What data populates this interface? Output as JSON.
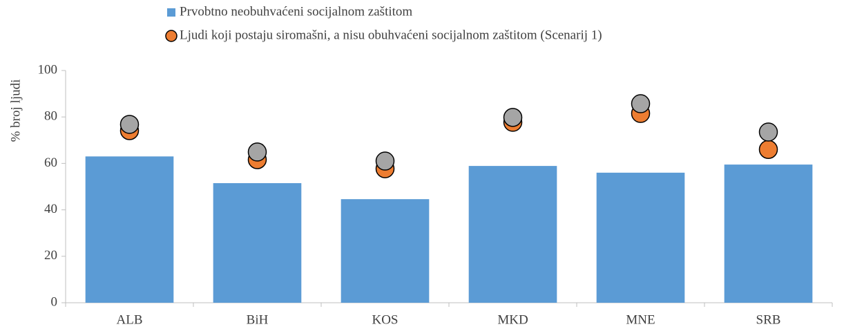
{
  "chart_data": {
    "type": "bar",
    "y_label": "% broj ljudi",
    "categories": [
      "ALB",
      "BiH",
      "KOS",
      "MKD",
      "MNE",
      "SRB"
    ],
    "series": [
      {
        "name": "Prvobtno neobuhvaćeni socijalnom zaštitom",
        "type": "bar",
        "color": "#5b9bd5",
        "values": [
          63,
          51.5,
          44.6,
          58.9,
          56,
          59.5
        ]
      },
      {
        "name": "Ljudi koji postaju siromašni, a nisu obuhvaćeni socijalnom zaštitom (Scenarij 1)",
        "type": "dot",
        "color": "#ed7d31",
        "values": [
          74.1,
          61.6,
          57.7,
          77.7,
          81.5,
          66
        ]
      },
      {
        "type": "dot",
        "color": "#a5a5a5",
        "values": [
          76.8,
          64.9,
          61,
          79.8,
          85.7,
          73.5
        ]
      }
    ],
    "ylim": [
      0,
      100
    ],
    "yticks": [
      0,
      20,
      40,
      60,
      80,
      100
    ],
    "grid": false
  }
}
